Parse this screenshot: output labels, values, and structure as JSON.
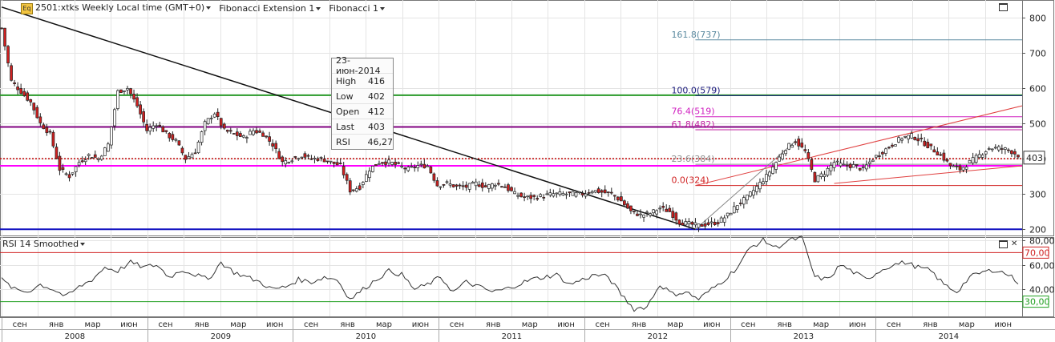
{
  "header": {
    "logo": "Eq",
    "symbol": "2501:xtks Weekly Local time (GMT+0)",
    "study1": "Fibonacci Extension 1",
    "study2": "Fibonacci 1"
  },
  "tooltip": {
    "date": "23-июн-2014",
    "rows": [
      {
        "k": "High",
        "v": "416"
      },
      {
        "k": "Low",
        "v": "402"
      },
      {
        "k": "Open",
        "v": "412"
      },
      {
        "k": "Last",
        "v": "403"
      },
      {
        "k": "RSI",
        "v": "46,27"
      }
    ]
  },
  "rsi_title": "RSI 14 Smoothed",
  "colors": {
    "bull": "#ffffff",
    "bear": "#d02020",
    "grid": "#e4e4e4",
    "hline_green": "#2a9a2a",
    "hline_purple": "#800080",
    "hline_blue": "#1010c0",
    "hline_magenta": "#ff00ff",
    "hline_red_dotted": "#c00000",
    "rsi_70": "#d02020",
    "rsi_30": "#20a020"
  },
  "chart_data": [
    {
      "type": "candlestick",
      "title": "2501:xtks Weekly",
      "ylim": [
        180,
        850
      ],
      "yticks": [
        200,
        300,
        400,
        500,
        600,
        700,
        800
      ],
      "last_value": "403",
      "x_months": [
        "сен",
        "янв",
        "мар",
        "июн",
        "сен",
        "янв",
        "мар",
        "июн",
        "сен",
        "янв",
        "мар",
        "июн",
        "сен",
        "янв",
        "мар",
        "июн",
        "сен",
        "янв",
        "мар",
        "июн",
        "сен",
        "янв",
        "мар",
        "июн",
        "сен",
        "янв",
        "мар",
        "июн"
      ],
      "x_years": [
        "2008",
        "2009",
        "2010",
        "2011",
        "2012",
        "2013",
        "2014"
      ],
      "trend_anchors": [
        [
          0,
          770
        ],
        [
          3,
          620
        ],
        [
          6,
          590
        ],
        [
          9,
          560
        ],
        [
          12,
          500
        ],
        [
          15,
          470
        ],
        [
          18,
          370
        ],
        [
          21,
          350
        ],
        [
          24,
          390
        ],
        [
          27,
          410
        ],
        [
          30,
          400
        ],
        [
          33,
          440
        ],
        [
          36,
          590
        ],
        [
          39,
          600
        ],
        [
          42,
          550
        ],
        [
          45,
          480
        ],
        [
          48,
          500
        ],
        [
          51,
          470
        ],
        [
          54,
          450
        ],
        [
          57,
          400
        ],
        [
          60,
          420
        ],
        [
          63,
          500
        ],
        [
          66,
          530
        ],
        [
          69,
          480
        ],
        [
          72,
          470
        ],
        [
          75,
          460
        ],
        [
          78,
          480
        ],
        [
          81,
          470
        ],
        [
          84,
          440
        ],
        [
          87,
          390
        ],
        [
          90,
          400
        ],
        [
          93,
          410
        ],
        [
          96,
          400
        ],
        [
          99,
          400
        ],
        [
          102,
          390
        ],
        [
          105,
          380
        ],
        [
          108,
          310
        ],
        [
          111,
          320
        ],
        [
          114,
          370
        ],
        [
          117,
          390
        ],
        [
          120,
          390
        ],
        [
          123,
          380
        ],
        [
          126,
          370
        ],
        [
          129,
          380
        ],
        [
          132,
          380
        ],
        [
          135,
          325
        ],
        [
          138,
          330
        ],
        [
          141,
          320
        ],
        [
          144,
          320
        ],
        [
          147,
          330
        ],
        [
          150,
          320
        ],
        [
          153,
          330
        ],
        [
          156,
          320
        ],
        [
          159,
          300
        ],
        [
          162,
          290
        ],
        [
          165,
          290
        ],
        [
          168,
          295
        ],
        [
          171,
          300
        ],
        [
          174,
          300
        ],
        [
          177,
          300
        ],
        [
          180,
          300
        ],
        [
          183,
          310
        ],
        [
          186,
          305
        ],
        [
          189,
          300
        ],
        [
          192,
          280
        ],
        [
          195,
          250
        ],
        [
          198,
          240
        ],
        [
          201,
          245
        ],
        [
          204,
          260
        ],
        [
          207,
          250
        ],
        [
          210,
          220
        ],
        [
          213,
          215
        ],
        [
          216,
          210
        ],
        [
          219,
          215
        ],
        [
          222,
          220
        ],
        [
          225,
          240
        ],
        [
          228,
          270
        ],
        [
          231,
          290
        ],
        [
          234,
          320
        ],
        [
          237,
          350
        ],
        [
          240,
          390
        ],
        [
          243,
          430
        ],
        [
          246,
          450
        ],
        [
          249,
          420
        ],
        [
          252,
          340
        ],
        [
          255,
          360
        ],
        [
          258,
          390
        ],
        [
          261,
          380
        ],
        [
          264,
          380
        ],
        [
          267,
          370
        ],
        [
          270,
          400
        ],
        [
          273,
          420
        ],
        [
          276,
          440
        ],
        [
          279,
          460
        ],
        [
          282,
          465
        ],
        [
          285,
          450
        ],
        [
          288,
          430
        ],
        [
          291,
          410
        ],
        [
          294,
          380
        ],
        [
          297,
          370
        ],
        [
          300,
          390
        ],
        [
          303,
          410
        ],
        [
          306,
          430
        ],
        [
          309,
          430
        ],
        [
          312,
          425
        ],
        [
          315,
          410
        ]
      ],
      "horizontal_levels": [
        {
          "value": 580,
          "style": "green"
        },
        {
          "value": 490,
          "style": "purple"
        },
        {
          "value": 400,
          "style": "red-dotted"
        },
        {
          "value": 380,
          "style": "magenta"
        },
        {
          "value": 200,
          "style": "blue"
        }
      ],
      "fib_levels": [
        {
          "label": "161.8(737)",
          "value": 737,
          "color": "#5b8aa0"
        },
        {
          "label": "100.0(579)",
          "value": 579,
          "color": "#202080"
        },
        {
          "label": "76.4(519)",
          "value": 519,
          "color": "#d020c0"
        },
        {
          "label": "61.8(482)",
          "value": 482,
          "color": "#c020a0"
        },
        {
          "label": "23.6(384)",
          "value": 384,
          "color": "#909090"
        },
        {
          "label": "0.0(324)",
          "value": 324,
          "color": "#d02020"
        }
      ],
      "trendline": {
        "from": [
          0,
          830
        ],
        "to": [
          215,
          200
        ]
      }
    },
    {
      "type": "line",
      "title": "RSI 14 Smoothed",
      "ylim": [
        18,
        82
      ],
      "yticks": [
        40,
        60,
        80
      ],
      "levels": [
        {
          "value": 70,
          "label": "70,00",
          "color": "#d02020"
        },
        {
          "value": 30,
          "label": "30,00",
          "color": "#20a020"
        }
      ],
      "anchors": [
        [
          0,
          48
        ],
        [
          4,
          40
        ],
        [
          8,
          38
        ],
        [
          12,
          44
        ],
        [
          16,
          40
        ],
        [
          20,
          34
        ],
        [
          24,
          42
        ],
        [
          28,
          48
        ],
        [
          32,
          58
        ],
        [
          36,
          55
        ],
        [
          40,
          62
        ],
        [
          44,
          58
        ],
        [
          48,
          60
        ],
        [
          52,
          50
        ],
        [
          56,
          56
        ],
        [
          60,
          52
        ],
        [
          64,
          48
        ],
        [
          68,
          62
        ],
        [
          72,
          54
        ],
        [
          76,
          50
        ],
        [
          80,
          46
        ],
        [
          84,
          40
        ],
        [
          88,
          42
        ],
        [
          92,
          48
        ],
        [
          96,
          46
        ],
        [
          100,
          50
        ],
        [
          104,
          48
        ],
        [
          108,
          32
        ],
        [
          112,
          40
        ],
        [
          116,
          48
        ],
        [
          120,
          55
        ],
        [
          124,
          52
        ],
        [
          128,
          40
        ],
        [
          132,
          44
        ],
        [
          136,
          50
        ],
        [
          140,
          38
        ],
        [
          144,
          46
        ],
        [
          148,
          42
        ],
        [
          152,
          38
        ],
        [
          156,
          40
        ],
        [
          160,
          44
        ],
        [
          164,
          48
        ],
        [
          168,
          50
        ],
        [
          172,
          52
        ],
        [
          176,
          44
        ],
        [
          180,
          48
        ],
        [
          184,
          52
        ],
        [
          188,
          50
        ],
        [
          192,
          36
        ],
        [
          196,
          24
        ],
        [
          200,
          26
        ],
        [
          204,
          44
        ],
        [
          208,
          36
        ],
        [
          212,
          38
        ],
        [
          216,
          32
        ],
        [
          220,
          40
        ],
        [
          224,
          48
        ],
        [
          228,
          58
        ],
        [
          232,
          74
        ],
        [
          236,
          80
        ],
        [
          240,
          74
        ],
        [
          244,
          80
        ],
        [
          248,
          82
        ],
        [
          252,
          50
        ],
        [
          256,
          48
        ],
        [
          260,
          60
        ],
        [
          264,
          54
        ],
        [
          268,
          48
        ],
        [
          272,
          55
        ],
        [
          276,
          60
        ],
        [
          280,
          62
        ],
        [
          284,
          58
        ],
        [
          288,
          55
        ],
        [
          292,
          44
        ],
        [
          296,
          38
        ],
        [
          300,
          50
        ],
        [
          304,
          54
        ],
        [
          308,
          56
        ],
        [
          312,
          52
        ],
        [
          315,
          46
        ]
      ]
    }
  ]
}
